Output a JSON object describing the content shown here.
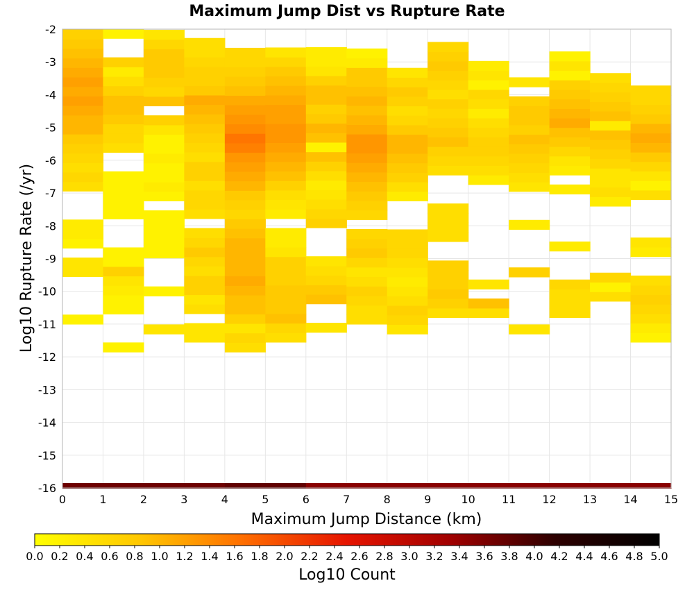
{
  "chart_data": {
    "type": "heatmap",
    "title": "Maximum Jump Dist vs Rupture Rate",
    "xlabel": "Maximum Jump Distance (km)",
    "ylabel": "Log10 Rupture Rate (/yr)",
    "xlim": [
      0,
      15
    ],
    "ylim": [
      -16,
      -2
    ],
    "x_ticks": [
      "0",
      "1",
      "2",
      "3",
      "4",
      "5",
      "6",
      "7",
      "8",
      "9",
      "10",
      "11",
      "12",
      "13",
      "14",
      "15"
    ],
    "y_ticks": [
      "-2",
      "-3",
      "-4",
      "-5",
      "-6",
      "-7",
      "-8",
      "-9",
      "-10",
      "-11",
      "-12",
      "-13",
      "-14",
      "-15",
      "-16"
    ],
    "grid": true,
    "x_bin_width": 1,
    "y_bin_height": 0.29,
    "colorbar": {
      "label": "Log10 Count",
      "range": [
        0,
        5
      ],
      "ticks": [
        "0.0",
        "0.2",
        "0.4",
        "0.6",
        "0.8",
        "1.0",
        "1.2",
        "1.4",
        "1.6",
        "1.8",
        "2.0",
        "2.2",
        "2.4",
        "2.6",
        "2.8",
        "3.0",
        "3.2",
        "3.4",
        "3.6",
        "3.8",
        "4.0",
        "4.2",
        "4.4",
        "4.6",
        "4.8",
        "5.0"
      ],
      "colors": [
        "#ffff00",
        "#ffc800",
        "#ff6e00",
        "#e61400",
        "#a00000",
        "#2d0000",
        "#000000"
      ]
    },
    "summary_row": {
      "note": "totals row drawn at the bottom of the plot",
      "y": -16,
      "values": [
        3.7,
        3.7,
        3.7,
        3.7,
        3.8,
        3.8,
        3.5,
        3.5,
        3.5,
        3.5,
        3.5,
        3.5,
        3.5,
        3.5,
        3.5
      ]
    },
    "columns": [
      {
        "x": 0,
        "ymin": -11.0,
        "values": [
          0.2,
          0.0,
          0.0,
          0.0,
          0.0,
          0.4,
          0.4,
          0.0,
          0.2,
          0.3,
          0.3,
          0.0,
          0.0,
          0.0,
          0.5,
          0.6,
          0.5,
          0.6,
          0.7,
          0.8,
          1.0,
          1.0,
          1.1,
          1.2,
          1.1,
          1.2,
          1.1,
          1.0,
          0.9,
          0.8,
          0.7
        ]
      },
      {
        "x": 1,
        "ymin": -11.85,
        "values": [
          0.2,
          0.0,
          0.0,
          0.0,
          0.2,
          0.2,
          0.3,
          0.4,
          0.7,
          0.2,
          0.2,
          0.0,
          0.0,
          0.0,
          0.2,
          0.2,
          0.2,
          0.2,
          0.2,
          0.0,
          0.0,
          0.5,
          0.6,
          0.6,
          0.8,
          0.9,
          0.9,
          0.7,
          0.5,
          0.3,
          0.7,
          0.0,
          0.0,
          0.2
        ]
      },
      {
        "x": 2,
        "ymin": -11.3,
        "values": [
          0.4,
          0.0,
          0.0,
          0.0,
          0.2,
          0.0,
          0.0,
          0.0,
          0.2,
          0.2,
          0.2,
          0.2,
          0.2,
          0.0,
          0.2,
          0.3,
          0.2,
          0.2,
          0.3,
          0.2,
          0.2,
          0.4,
          0.7,
          0.0,
          0.9,
          0.6,
          0.7,
          0.8,
          0.8,
          0.8,
          0.6,
          0.4
        ]
      },
      {
        "x": 3,
        "ymin": -11.55,
        "values": [
          0.4,
          0.4,
          0.0,
          0.5,
          0.4,
          0.7,
          0.7,
          0.5,
          0.6,
          0.8,
          0.6,
          0.5,
          0.0,
          0.5,
          0.6,
          0.6,
          0.5,
          0.7,
          0.7,
          0.5,
          0.6,
          0.7,
          0.8,
          0.9,
          1.0,
          1.1,
          0.8,
          0.7,
          0.7,
          0.6,
          0.5,
          0.5
        ]
      },
      {
        "x": 4,
        "ymin": -11.85,
        "values": [
          0.5,
          0.6,
          0.4,
          0.7,
          0.9,
          0.9,
          1.0,
          1.1,
          1.0,
          1.0,
          1.0,
          1.0,
          0.9,
          0.8,
          0.6,
          0.7,
          0.8,
          1.0,
          1.1,
          1.2,
          1.3,
          1.5,
          1.6,
          1.4,
          1.3,
          1.2,
          1.1,
          0.9,
          0.8,
          0.7,
          0.6,
          0.6
        ]
      },
      {
        "x": 5,
        "ymin": -11.55,
        "values": [
          0.5,
          0.6,
          0.9,
          0.8,
          0.8,
          0.8,
          0.7,
          0.7,
          0.7,
          0.4,
          0.3,
          0.3,
          0.0,
          0.3,
          0.4,
          0.5,
          0.7,
          0.9,
          1.0,
          1.1,
          1.2,
          1.3,
          1.3,
          1.2,
          1.2,
          1.1,
          1.0,
          0.9,
          0.8,
          0.6,
          0.4
        ]
      },
      {
        "x": 6,
        "ymin": -11.25,
        "values": [
          0.4,
          0.0,
          0.0,
          0.9,
          0.8,
          0.6,
          0.5,
          0.4,
          0.0,
          0.0,
          0.0,
          0.7,
          0.6,
          0.5,
          0.4,
          0.3,
          0.5,
          0.7,
          0.9,
          0.2,
          0.9,
          1.0,
          0.8,
          0.7,
          0.9,
          0.9,
          0.7,
          0.4,
          0.3,
          0.3
        ]
      },
      {
        "x": 7,
        "ymin": -11.0,
        "values": [
          0.5,
          0.5,
          0.6,
          0.7,
          0.5,
          0.4,
          0.6,
          0.8,
          0.7,
          0.6,
          0.0,
          0.6,
          0.7,
          0.8,
          0.9,
          1.0,
          1.1,
          1.2,
          1.3,
          1.3,
          1.1,
          1.0,
          0.9,
          1.0,
          0.9,
          0.8,
          0.8,
          0.3,
          0.2
        ]
      },
      {
        "x": 8,
        "ymin": -11.3,
        "values": [
          0.4,
          0.6,
          0.7,
          0.5,
          0.4,
          0.3,
          0.4,
          0.5,
          0.6,
          0.6,
          0.6,
          0.0,
          0.0,
          0.0,
          0.3,
          0.5,
          0.7,
          0.8,
          0.9,
          1.0,
          1.0,
          0.8,
          0.6,
          0.5,
          0.7,
          0.8,
          0.6,
          0.4
        ]
      },
      {
        "x": 9,
        "ymin": -10.8,
        "values": [
          0.5,
          0.7,
          0.8,
          0.7,
          0.7,
          0.7,
          0.0,
          0.0,
          0.5,
          0.5,
          0.5,
          0.5,
          0.0,
          0.0,
          0.0,
          0.5,
          0.6,
          0.7,
          0.9,
          0.8,
          0.7,
          0.6,
          0.7,
          0.5,
          0.6,
          0.7,
          0.8,
          0.7,
          0.6
        ]
      },
      {
        "x": 10,
        "ymin": -10.8,
        "values": [
          0.5,
          0.9,
          0.0,
          0.4,
          0.0,
          0.0,
          0.0,
          0.0,
          0.0,
          0.0,
          0.0,
          0.0,
          0.0,
          0.0,
          0.3,
          0.5,
          0.6,
          0.7,
          0.7,
          0.6,
          0.5,
          0.3,
          0.5,
          0.6,
          0.2,
          0.4,
          0.3
        ]
      },
      {
        "x": 11,
        "ymin": -11.3,
        "values": [
          0.4,
          0.0,
          0.0,
          0.0,
          0.0,
          0.0,
          0.7,
          0.0,
          0.0,
          0.0,
          0.0,
          0.3,
          0.0,
          0.0,
          0.0,
          0.4,
          0.5,
          0.6,
          0.7,
          0.8,
          0.9,
          0.7,
          0.8,
          0.8,
          0.7,
          0.0,
          0.4
        ]
      },
      {
        "x": 12,
        "ymin": -10.8,
        "values": [
          0.5,
          0.5,
          0.5,
          0.6,
          0.0,
          0.0,
          0.0,
          0.3,
          0.0,
          0.0,
          0.0,
          0.0,
          0.0,
          0.3,
          0.0,
          0.3,
          0.4,
          0.6,
          0.8,
          0.9,
          1.1,
          1.0,
          0.9,
          0.8,
          0.7,
          0.2,
          0.4,
          0.2
        ]
      },
      {
        "x": 13,
        "ymin": -10.3,
        "values": [
          0.5,
          0.2,
          0.6,
          0.0,
          0.0,
          0.0,
          0.0,
          0.0,
          0.0,
          0.0,
          0.3,
          0.5,
          0.4,
          0.4,
          0.6,
          0.7,
          0.8,
          0.9,
          0.3,
          0.9,
          0.8,
          0.7,
          0.6,
          0.5
        ]
      },
      {
        "x": 14,
        "ymin": -11.55,
        "values": [
          0.2,
          0.3,
          0.5,
          0.6,
          0.7,
          0.6,
          0.5,
          0.0,
          0.0,
          0.3,
          0.4,
          0.0,
          0.0,
          0.0,
          0.0,
          0.5,
          0.2,
          0.4,
          0.6,
          0.8,
          1.0,
          1.1,
          1.0,
          0.8,
          0.7,
          0.6,
          0.6
        ]
      }
    ]
  }
}
